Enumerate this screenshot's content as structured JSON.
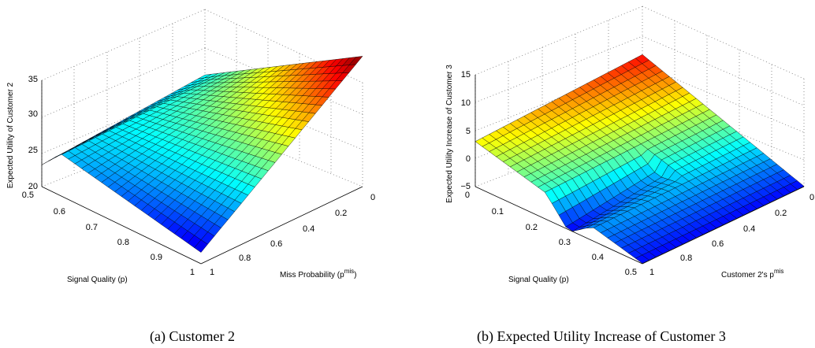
{
  "figure": {
    "captions": [
      "(a) Customer 2",
      "(b) Expected Utility Increase of Customer 3"
    ]
  },
  "chart_data": [
    {
      "type": "surface",
      "title": "",
      "zlabel": "Expected Utility of Customer 2",
      "xlabel": "Signal Quality (p)",
      "ylabel_main": "Miss Probability (p",
      "ylabel_sup": "mis",
      "ylabel_tail": ")",
      "x_range": [
        0.5,
        1
      ],
      "y_range": [
        0,
        1
      ],
      "z_range": [
        20,
        35
      ],
      "x_ticks": [
        "0.5",
        "0.6",
        "0.7",
        "0.8",
        "0.9",
        "1"
      ],
      "y_ticks": [
        "0",
        "0.2",
        "0.4",
        "0.6",
        "0.8",
        "1"
      ],
      "z_ticks": [
        "20",
        "25",
        "30",
        "35"
      ],
      "grid": true,
      "colormap": "jet",
      "corner_values": {
        "p0.5_pmis0": 26.5,
        "p0.5_pmis1": 23.0,
        "p1_pmis0": 38.0,
        "p1_pmis1": 20.0
      }
    },
    {
      "type": "surface",
      "title": "",
      "zlabel": "Expected Utility Increase of Customer 3",
      "xlabel": "Signal Quality (p)",
      "ylabel_main": "Customer 2's p",
      "ylabel_sup": "mis",
      "ylabel_tail": "",
      "x_range": [
        0,
        0.5
      ],
      "y_range": [
        0,
        1
      ],
      "z_range": [
        -5,
        15
      ],
      "x_ticks": [
        "0",
        "0.1",
        "0.2",
        "0.3",
        "0.4",
        "0.5"
      ],
      "y_ticks": [
        "0",
        "0.2",
        "0.4",
        "0.6",
        "0.8",
        "1"
      ],
      "z_ticks": [
        "−5",
        "0",
        "5",
        "10",
        "15"
      ],
      "grid": true,
      "colormap": "jet",
      "corner_values": {
        "p0_pmis0": 12.0,
        "p0_pmis1": 8.0,
        "p0.5_pmis0": 0.0,
        "p0.5_pmis1": 0.0
      }
    }
  ]
}
